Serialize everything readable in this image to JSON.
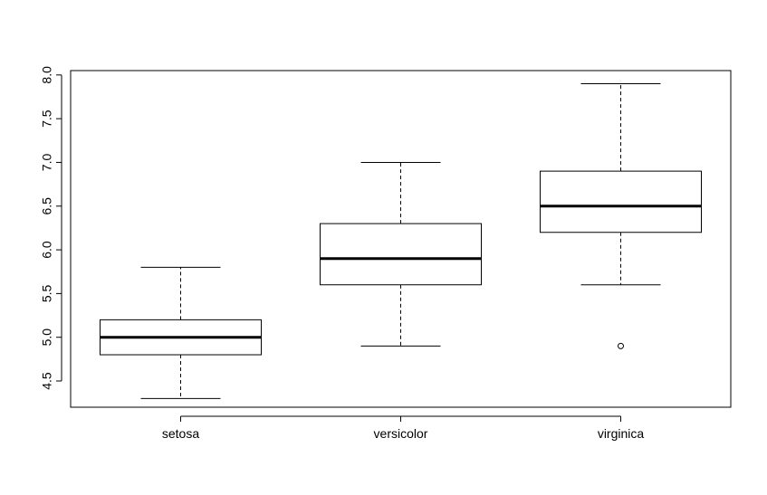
{
  "chart_data": {
    "type": "boxplot",
    "categories": [
      "setosa",
      "versicolor",
      "virginica"
    ],
    "ylim": [
      4.2,
      8.05
    ],
    "yticks": [
      4.5,
      5.0,
      5.5,
      6.0,
      6.5,
      7.0,
      7.5,
      8.0
    ],
    "ytick_labels": [
      "4.5",
      "5.0",
      "5.5",
      "6.0",
      "6.5",
      "7.0",
      "7.5",
      "8.0"
    ],
    "boxes": [
      {
        "category": "setosa",
        "whisker_low": 4.3,
        "q1": 4.8,
        "median": 5.0,
        "q3": 5.2,
        "whisker_high": 5.8,
        "outliers": []
      },
      {
        "category": "versicolor",
        "whisker_low": 4.9,
        "q1": 5.6,
        "median": 5.9,
        "q3": 6.3,
        "whisker_high": 7.0,
        "outliers": []
      },
      {
        "category": "virginica",
        "whisker_low": 5.6,
        "q1": 6.2,
        "median": 6.5,
        "q3": 6.9,
        "whisker_high": 7.9,
        "outliers": [
          4.9
        ]
      }
    ],
    "grid": false,
    "legend": "none",
    "colors": {
      "stroke": "#000000",
      "background": "#ffffff"
    }
  }
}
